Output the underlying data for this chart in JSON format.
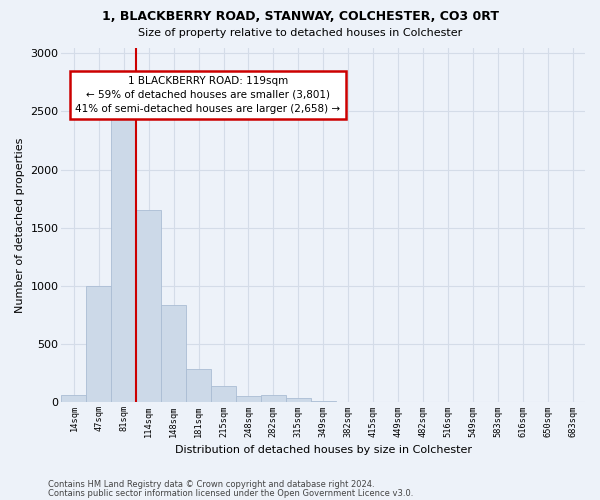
{
  "title1": "1, BLACKBERRY ROAD, STANWAY, COLCHESTER, CO3 0RT",
  "title2": "Size of property relative to detached houses in Colchester",
  "xlabel": "Distribution of detached houses by size in Colchester",
  "ylabel": "Number of detached properties",
  "bin_labels": [
    "14sqm",
    "47sqm",
    "81sqm",
    "114sqm",
    "148sqm",
    "181sqm",
    "215sqm",
    "248sqm",
    "282sqm",
    "315sqm",
    "349sqm",
    "382sqm",
    "415sqm",
    "449sqm",
    "482sqm",
    "516sqm",
    "549sqm",
    "583sqm",
    "616sqm",
    "650sqm",
    "683sqm"
  ],
  "bar_values": [
    60,
    1000,
    2450,
    1650,
    840,
    290,
    140,
    55,
    60,
    35,
    15,
    0,
    0,
    0,
    0,
    0,
    0,
    0,
    0,
    0,
    0
  ],
  "bar_color": "#ccd9e8",
  "bar_edge_color": "#aabdd4",
  "grid_color": "#d4dce8",
  "vline_color": "#cc0000",
  "annotation_text": "1 BLACKBERRY ROAD: 119sqm\n← 59% of detached houses are smaller (3,801)\n41% of semi-detached houses are larger (2,658) →",
  "annotation_box_color": "#cc0000",
  "footer1": "Contains HM Land Registry data © Crown copyright and database right 2024.",
  "footer2": "Contains public sector information licensed under the Open Government Licence v3.0.",
  "ylim": [
    0,
    3050
  ],
  "yticks": [
    0,
    500,
    1000,
    1500,
    2000,
    2500,
    3000
  ],
  "bg_color": "#edf2f9"
}
